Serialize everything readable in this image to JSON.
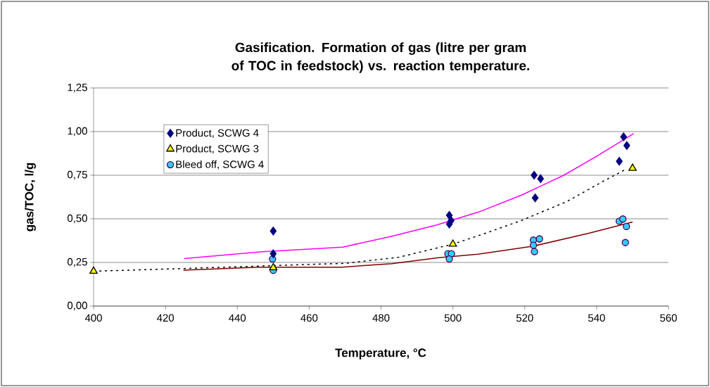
{
  "chart_data": {
    "type": "scatter",
    "title": "Gasification. Formation of gas (litre per gram of TOC in feedstock) vs. reaction temperature.",
    "xlabel": "Temperature, °C",
    "ylabel": "gas/TOC, l/g",
    "xlim": [
      400,
      560
    ],
    "xticks": [
      400,
      420,
      440,
      460,
      480,
      500,
      520,
      540,
      560
    ],
    "ylim": [
      0,
      1.25
    ],
    "yticks": [
      {
        "value": 0,
        "label": "0,00"
      },
      {
        "value": 0.25,
        "label": "0,25"
      },
      {
        "value": 0.5,
        "label": "0,50"
      },
      {
        "value": 0.75,
        "label": "0,75"
      },
      {
        "value": 1.0,
        "label": "1,00"
      },
      {
        "value": 1.25,
        "label": "1,25"
      }
    ],
    "grid": "y",
    "legend": "top left",
    "series": [
      {
        "name": "Product, SCWG 4",
        "color": "#000080",
        "marker": "diamond",
        "x": [
          450,
          450,
          499,
          499.5,
          499,
          522.6,
          524.4,
          522.9,
          547.5,
          548.4,
          546.3
        ],
        "values": [
          0.43,
          0.3,
          0.52,
          0.49,
          0.47,
          0.75,
          0.73,
          0.62,
          0.97,
          0.92,
          0.83
        ]
      },
      {
        "name": "Product, SCWG 3",
        "color": "#ffff00",
        "marker": "triangle",
        "x": [
          400,
          450,
          500,
          550
        ],
        "values": [
          0.2,
          0.22,
          0.355,
          0.79
        ]
      },
      {
        "name": "Bleed off, SCWG 4",
        "color": "#33ccff",
        "marker": "circle",
        "x": [
          449.8,
          450,
          498.6,
          499.6,
          499,
          522.4,
          524.1,
          522.4,
          522.7,
          546.3,
          547.3,
          548.3,
          548
        ],
        "values": [
          0.27,
          0.205,
          0.3,
          0.3,
          0.27,
          0.378,
          0.385,
          0.348,
          0.312,
          0.486,
          0.499,
          0.456,
          0.364
        ]
      },
      {
        "type": "line",
        "color": "#ff00ff",
        "marker": "none",
        "line_style": "solid",
        "x": [
          425.2,
          446.3,
          469.3,
          482.4,
          495.5,
          507.3,
          519,
          530.8,
          539.9,
          550.3
        ],
        "values": [
          0.272,
          0.31,
          0.338,
          0.397,
          0.465,
          0.54,
          0.635,
          0.749,
          0.857,
          0.988
        ]
      },
      {
        "type": "line",
        "color": "#800000",
        "marker": "none",
        "line_style": "solid",
        "x": [
          425,
          446,
          469,
          483,
          496,
          507,
          522.5,
          538,
          550
        ],
        "values": [
          0.206,
          0.223,
          0.223,
          0.243,
          0.277,
          0.297,
          0.344,
          0.418,
          0.482
        ]
      },
      {
        "type": "line",
        "color": "#000000",
        "marker": "none",
        "line_style": "dotted",
        "x": [
          400,
          425,
          450,
          470,
          485,
          500,
          508.6,
          519,
          531.8,
          541.2,
          548.4
        ],
        "values": [
          0.2,
          0.215,
          0.232,
          0.245,
          0.28,
          0.355,
          0.414,
          0.49,
          0.6,
          0.708,
          0.787
        ]
      }
    ]
  }
}
